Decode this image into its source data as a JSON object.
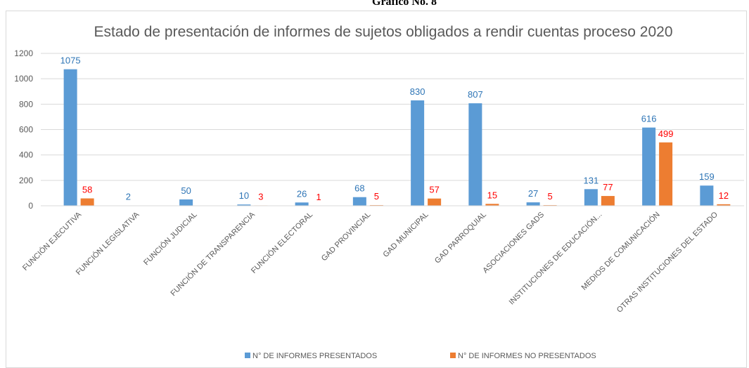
{
  "header": "Gráfico No. 8",
  "chart_data": {
    "type": "bar",
    "title": "Estado de presentación de informes de sujetos obligados a rendir cuentas proceso 2020",
    "categories": [
      "FUNCIÓN EJECUTIVA",
      "FUNCIÓN LEGISLATIVA",
      "FUNCIÓN JUDICIAL",
      "FUNCIÓN DE TRANSPARENCIA",
      "FUNCIÓN ELECTORAL",
      "GAD PROVINCIAL",
      "GAD MUNICIPAL",
      "GAD PARROQUIAL",
      "ASOCIACIONES GADS",
      "INSTITUCIONES DE EDUCACIÓN...",
      "MEDIOS DE COMUNICACIÓN",
      "OTRAS INSTITUCIONES DEL ESTADO"
    ],
    "series": [
      {
        "name": "N° DE INFORMES PRESENTADOS",
        "color": "#5b9bd5",
        "label_color": "#2e75b6",
        "values": [
          1075,
          2,
          50,
          10,
          26,
          68,
          830,
          807,
          27,
          131,
          616,
          159
        ]
      },
      {
        "name": "N° DE INFORMES NO PRESENTADOS",
        "color": "#ed7d31",
        "label_color": "#ff0000",
        "values": [
          58,
          null,
          null,
          3,
          1,
          5,
          57,
          15,
          5,
          77,
          499,
          12
        ]
      }
    ],
    "ylim": [
      0,
      1200
    ],
    "yticks": [
      0,
      200,
      400,
      600,
      800,
      1000,
      1200
    ],
    "grid": true,
    "legend": "bottom"
  }
}
